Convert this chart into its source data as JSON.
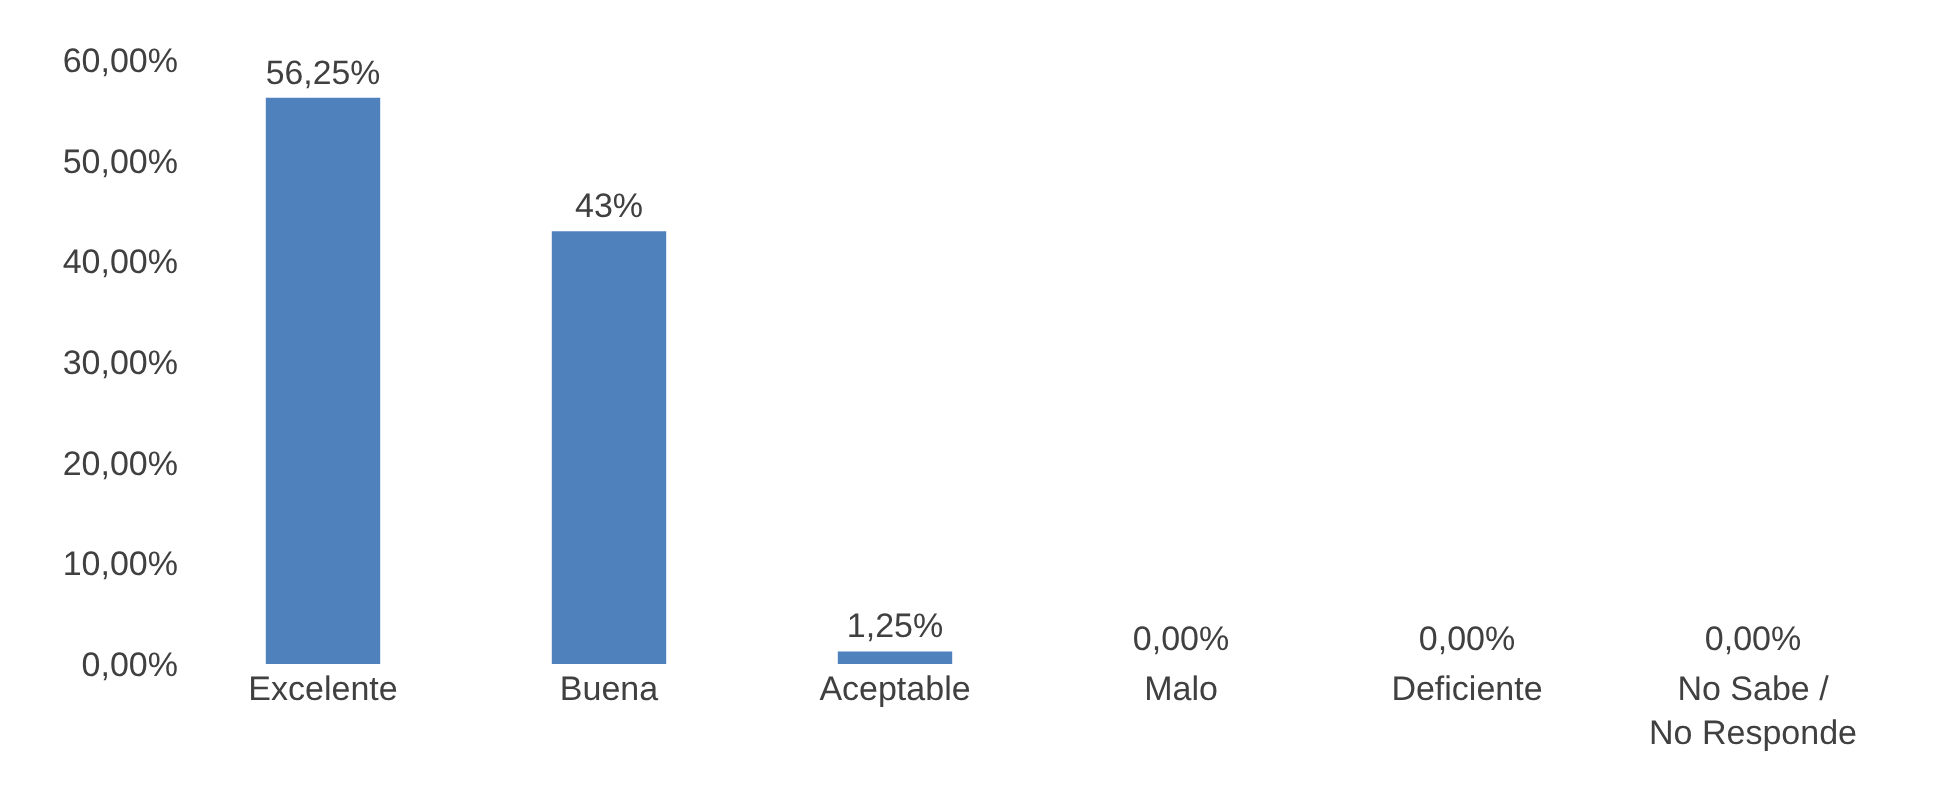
{
  "chart_data": {
    "type": "bar",
    "categories": [
      "Excelente",
      "Buena",
      "Aceptable",
      "Malo",
      "Deficiente",
      "No Sabe / No Responde"
    ],
    "values": [
      56.25,
      43,
      1.25,
      0,
      0,
      0
    ],
    "value_labels": [
      "56,25%",
      "43%",
      "1,25%",
      "0,00%",
      "0,00%",
      "0,00%"
    ],
    "color": "#4f81bd",
    "ylim": [
      0,
      60
    ],
    "yticks": [
      {
        "value": 0,
        "label": "0,00%"
      },
      {
        "value": 10,
        "label": "10,00%"
      },
      {
        "value": 20,
        "label": "20,00%"
      },
      {
        "value": 30,
        "label": "30,00%"
      },
      {
        "value": 40,
        "label": "40,00%"
      },
      {
        "value": 50,
        "label": "50,00%"
      },
      {
        "value": 60,
        "label": "60,00%"
      }
    ],
    "grid": false
  }
}
